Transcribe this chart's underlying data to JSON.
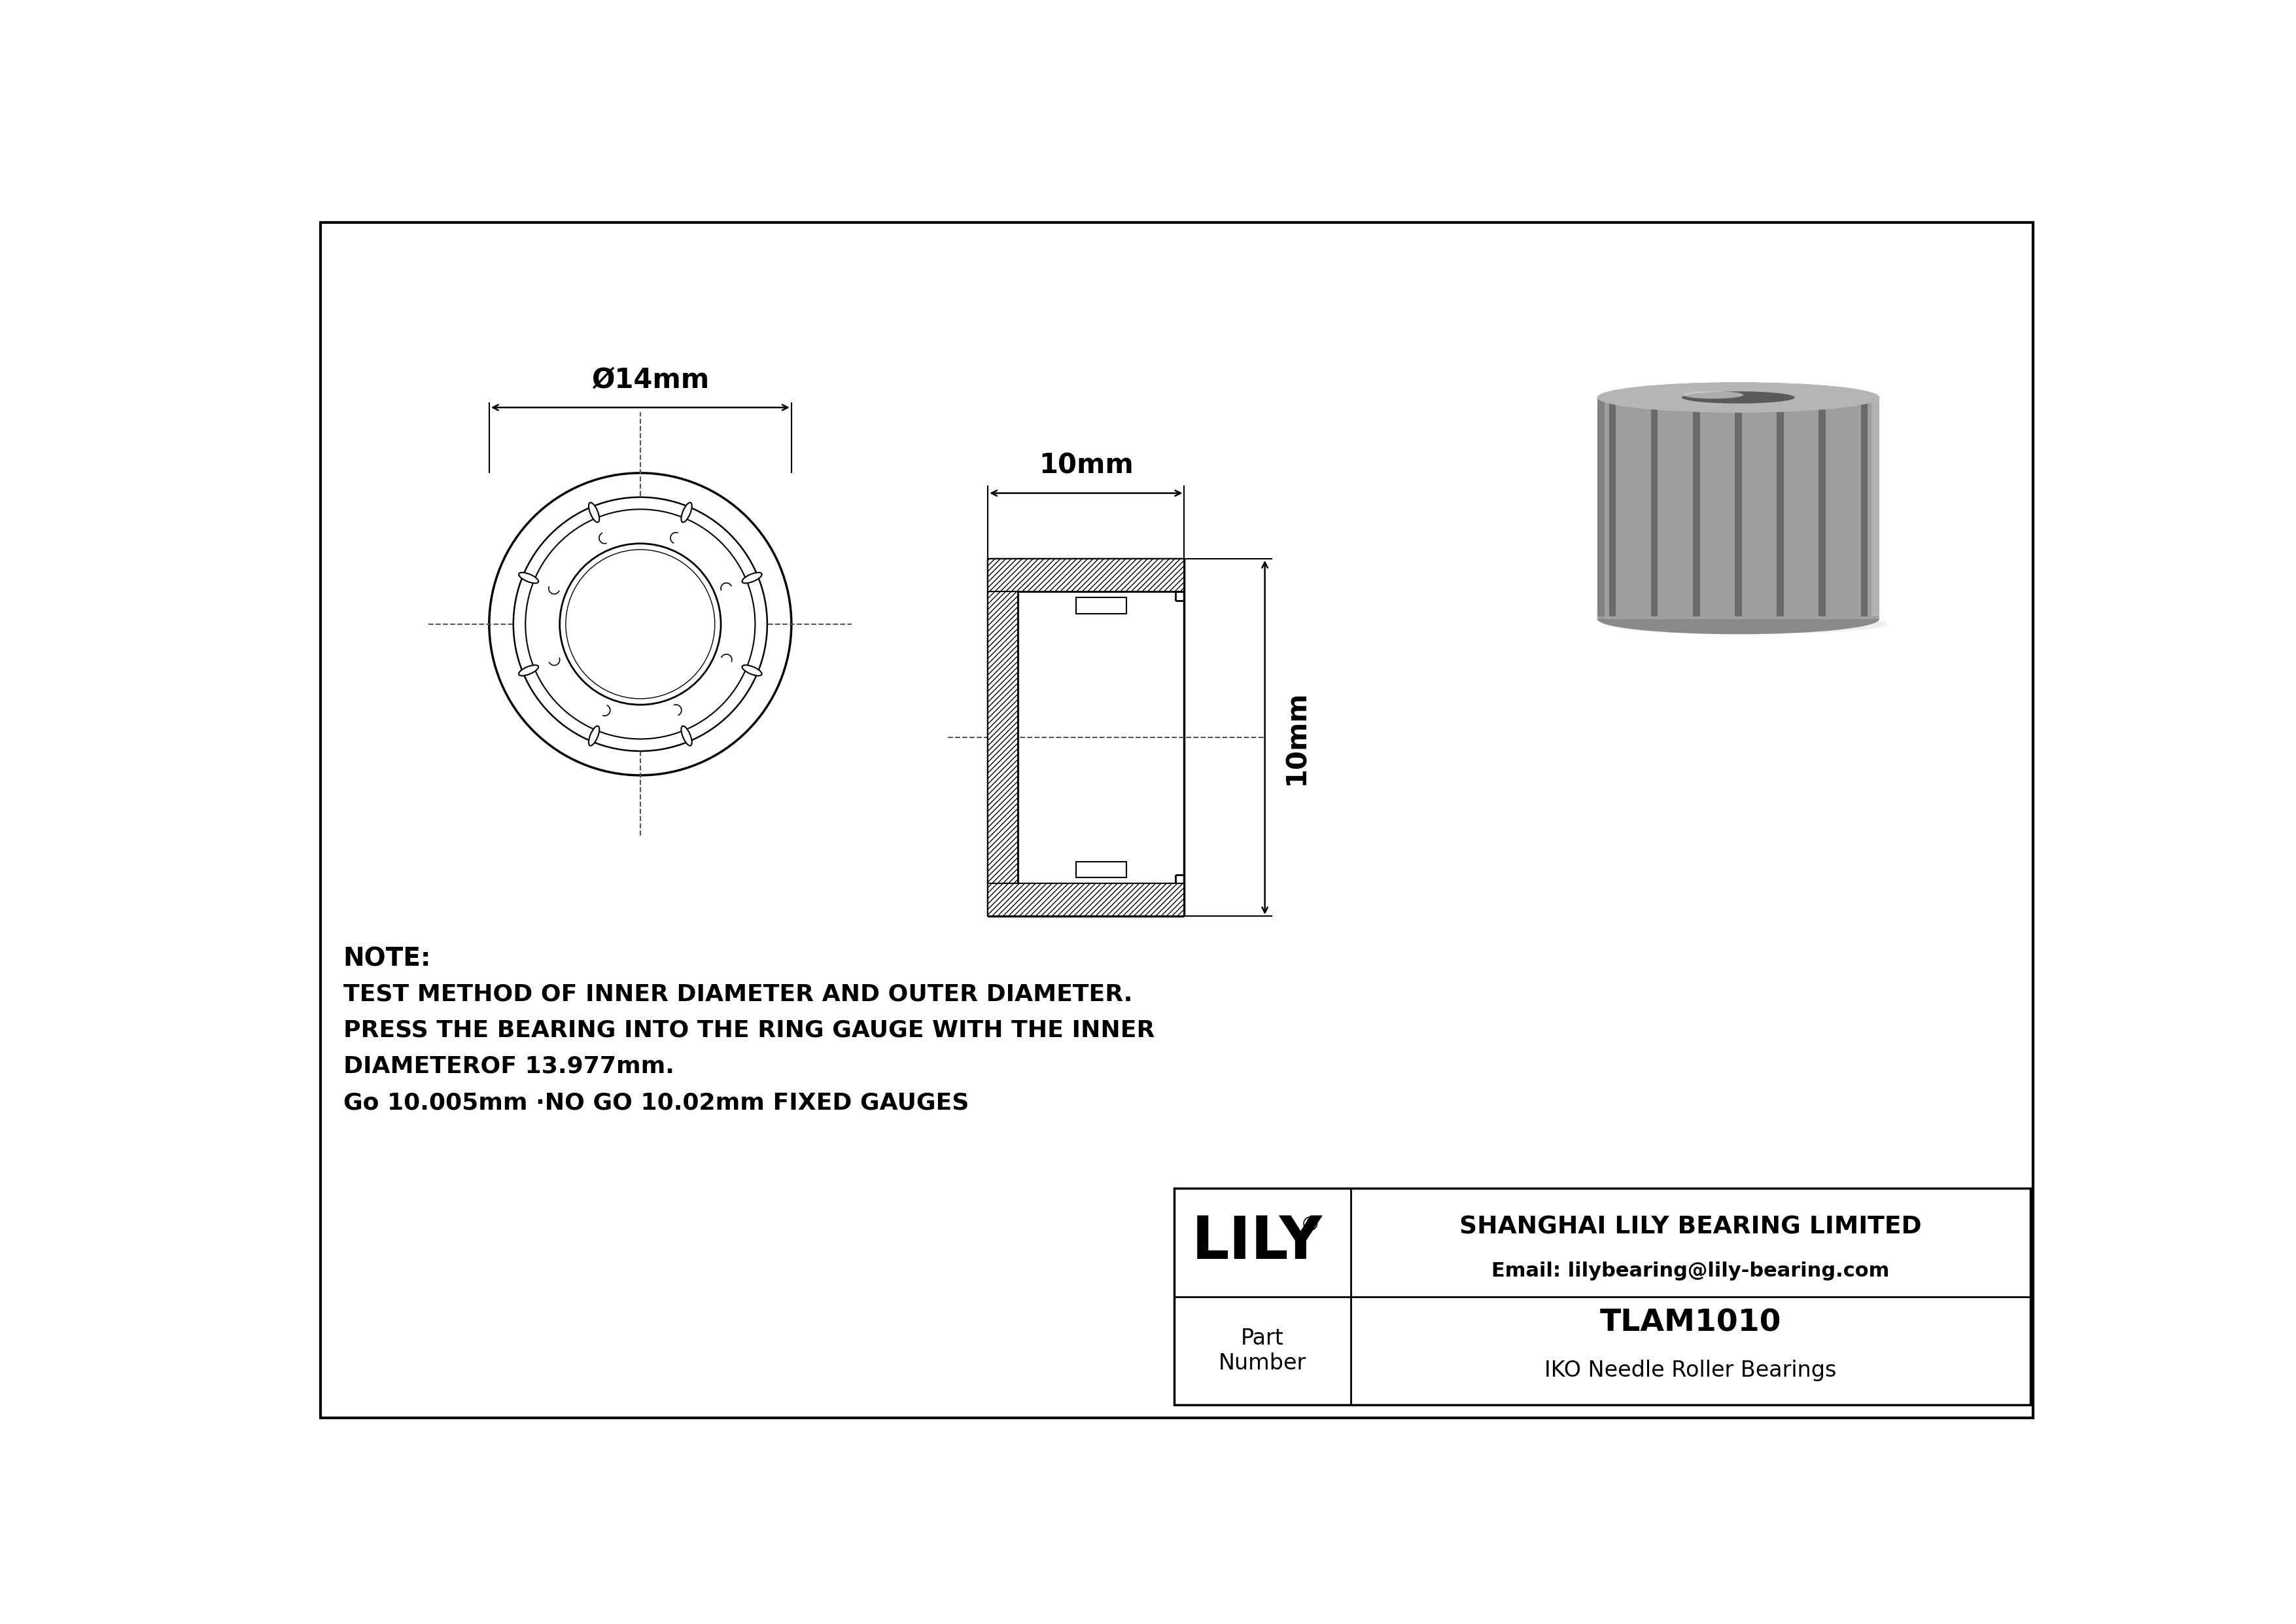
{
  "bg_color": "#ffffff",
  "border_color": "#000000",
  "line_color": "#000000",
  "note_lines": [
    "NOTE:",
    "TEST METHOD OF INNER DIAMETER AND OUTER DIAMETER.",
    "PRESS THE BEARING INTO THE RING GAUGE WITH THE INNER",
    "DIAMETEROF 13.977mm.",
    "Go 10.005mm ·NO GO 10.02mm FIXED GAUGES"
  ],
  "company_name": "SHANGHAI LILY BEARING LIMITED",
  "company_email": "Email: lilybearing@lily-bearing.com",
  "part_label": "Part\nNumber",
  "part_number": "TLAM1010",
  "part_series": "IKO Needle Roller Bearings",
  "brand_name": "LILY",
  "dim_outer": "Ø14mm",
  "dim_width": "10mm",
  "dim_height": "10mm"
}
